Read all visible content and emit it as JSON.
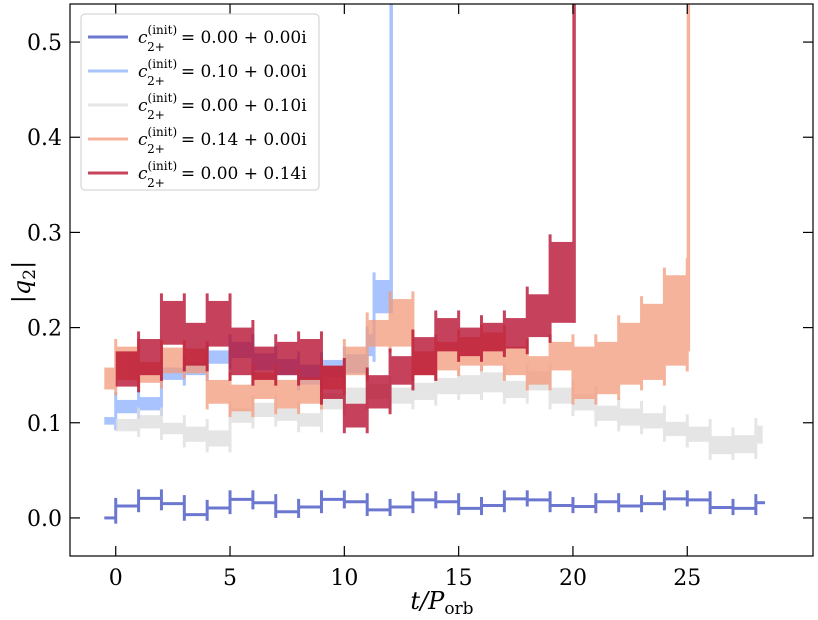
{
  "chart_data": {
    "type": "line",
    "title": "",
    "xlabel": "t/P_orb",
    "xlabel_main": "t/P",
    "xlabel_sub": "orb",
    "ylabel": "|q_2|",
    "ylabel_main": "|q",
    "ylabel_sub": "2",
    "ylabel_close": "|",
    "xlim": [
      -2,
      30.5
    ],
    "ylim": [
      -0.04,
      0.54
    ],
    "x_ticks": [
      0,
      5,
      10,
      15,
      20,
      25
    ],
    "x_tick_labels": [
      "0",
      "5",
      "10",
      "15",
      "20",
      "25"
    ],
    "y_ticks": [
      0.0,
      0.1,
      0.2,
      0.3,
      0.4,
      0.5
    ],
    "y_tick_labels": [
      "0.0",
      "0.1",
      "0.2",
      "0.3",
      "0.4",
      "0.5"
    ],
    "grid": false,
    "legend_position": "top-left",
    "series": [
      {
        "name": "c_{2+}^{(init)} = 0.00 + 0.00i",
        "legend_label": "= 0.00 + 0.00i",
        "color": "#3b4cc0",
        "opacity": 0.75,
        "band": false,
        "end_x": 28.4,
        "levels": [
          [
            -0.5,
            0.0,
            0.0
          ],
          [
            0,
            0.012,
            0.013
          ],
          [
            1,
            0.019,
            0.022
          ],
          [
            2,
            0.014,
            0.016
          ],
          [
            3,
            0.003,
            0.004
          ],
          [
            4,
            0.01,
            0.011
          ],
          [
            5,
            0.018,
            0.021
          ],
          [
            6,
            0.015,
            0.017
          ],
          [
            7,
            0.006,
            0.007
          ],
          [
            8,
            0.011,
            0.012
          ],
          [
            9,
            0.018,
            0.021
          ],
          [
            10,
            0.016,
            0.018
          ],
          [
            11,
            0.008,
            0.009
          ],
          [
            12,
            0.011,
            0.012
          ],
          [
            13,
            0.018,
            0.02
          ],
          [
            14,
            0.016,
            0.018
          ],
          [
            15,
            0.009,
            0.011
          ],
          [
            16,
            0.012,
            0.014
          ],
          [
            17,
            0.019,
            0.021
          ],
          [
            18,
            0.018,
            0.02
          ],
          [
            19,
            0.012,
            0.014
          ],
          [
            20,
            0.011,
            0.013
          ],
          [
            21,
            0.016,
            0.018
          ],
          [
            22,
            0.012,
            0.013
          ],
          [
            23,
            0.014,
            0.016
          ],
          [
            24,
            0.019,
            0.021
          ],
          [
            25,
            0.018,
            0.02
          ],
          [
            26,
            0.01,
            0.012
          ],
          [
            27,
            0.009,
            0.011
          ],
          [
            28,
            0.015,
            0.017
          ]
        ]
      },
      {
        "name": "c_{2+}^{(init)} = 0.10 + 0.00i",
        "legend_label": "= 0.10 + 0.00i",
        "color": "#8db0fe",
        "opacity": 0.75,
        "band": true,
        "end_x": 12.05,
        "end_spike": 0.6,
        "levels": [
          [
            -0.5,
            0.098,
            0.106
          ],
          [
            0,
            0.11,
            0.124
          ],
          [
            1,
            0.113,
            0.127
          ],
          [
            2,
            0.145,
            0.158
          ],
          [
            3,
            0.15,
            0.163
          ],
          [
            4,
            0.162,
            0.176
          ],
          [
            5,
            0.168,
            0.185
          ],
          [
            6,
            0.155,
            0.173
          ],
          [
            7,
            0.15,
            0.167
          ],
          [
            8,
            0.14,
            0.161
          ],
          [
            9,
            0.148,
            0.166
          ],
          [
            10,
            0.152,
            0.172
          ],
          [
            11,
            0.17,
            0.193
          ],
          [
            11.3,
            0.215,
            0.25
          ]
        ]
      },
      {
        "name": "c_{2+}^{(init)} = 0.00 + 0.10i",
        "legend_label": "= 0.00 + 0.10i",
        "color": "#dddddd",
        "opacity": 0.75,
        "band": true,
        "end_x": 28.3,
        "levels": [
          [
            0,
            0.091,
            0.104
          ],
          [
            1,
            0.094,
            0.108
          ],
          [
            2,
            0.088,
            0.1
          ],
          [
            3,
            0.08,
            0.096
          ],
          [
            4,
            0.075,
            0.092
          ],
          [
            5,
            0.1,
            0.115
          ],
          [
            6,
            0.106,
            0.121
          ],
          [
            7,
            0.102,
            0.115
          ],
          [
            8,
            0.096,
            0.11
          ],
          [
            9,
            0.114,
            0.131
          ],
          [
            10,
            0.12,
            0.137
          ],
          [
            11,
            0.125,
            0.141
          ],
          [
            12,
            0.12,
            0.137
          ],
          [
            13,
            0.124,
            0.142
          ],
          [
            14,
            0.13,
            0.147
          ],
          [
            15,
            0.13,
            0.15
          ],
          [
            16,
            0.132,
            0.153
          ],
          [
            17,
            0.126,
            0.144
          ],
          [
            18,
            0.134,
            0.154
          ],
          [
            19,
            0.12,
            0.137
          ],
          [
            20,
            0.113,
            0.13
          ],
          [
            21,
            0.102,
            0.118
          ],
          [
            22,
            0.097,
            0.115
          ],
          [
            23,
            0.094,
            0.11
          ],
          [
            24,
            0.086,
            0.101
          ],
          [
            25,
            0.08,
            0.096
          ],
          [
            26,
            0.067,
            0.086
          ],
          [
            27,
            0.068,
            0.087
          ],
          [
            28,
            0.078,
            0.097
          ]
        ]
      },
      {
        "name": "c_{2+}^{(init)} = 0.14 + 0.00i",
        "legend_label": "= 0.14 + 0.00i",
        "color": "#f49a7b",
        "opacity": 0.75,
        "band": true,
        "end_x": 25.05,
        "end_spike": 0.6,
        "levels": [
          [
            -0.5,
            0.135,
            0.158
          ],
          [
            0,
            0.145,
            0.18
          ],
          [
            1,
            0.142,
            0.164
          ],
          [
            2,
            0.152,
            0.179
          ],
          [
            3,
            0.152,
            0.178
          ],
          [
            4,
            0.12,
            0.145
          ],
          [
            5,
            0.112,
            0.14
          ],
          [
            6,
            0.125,
            0.153
          ],
          [
            7,
            0.115,
            0.145
          ],
          [
            8,
            0.12,
            0.148
          ],
          [
            9,
            0.135,
            0.16
          ],
          [
            10,
            0.15,
            0.18
          ],
          [
            11,
            0.18,
            0.208
          ],
          [
            12,
            0.18,
            0.23
          ],
          [
            13,
            0.15,
            0.175
          ],
          [
            14,
            0.155,
            0.185
          ],
          [
            15,
            0.16,
            0.19
          ],
          [
            16,
            0.16,
            0.195
          ],
          [
            17,
            0.15,
            0.18
          ],
          [
            18,
            0.14,
            0.17
          ],
          [
            19,
            0.155,
            0.185
          ],
          [
            20,
            0.125,
            0.18
          ],
          [
            21,
            0.13,
            0.185
          ],
          [
            22,
            0.14,
            0.205
          ],
          [
            23,
            0.145,
            0.225
          ],
          [
            24,
            0.16,
            0.255
          ],
          [
            25,
            0.175,
            0.265
          ]
        ]
      },
      {
        "name": "c_{2+}^{(init)} = 0.00 + 0.14i",
        "legend_label": "= 0.00 + 0.14i",
        "color": "#b40426",
        "opacity": 0.75,
        "band": true,
        "end_x": 20.05,
        "end_spike": 0.6,
        "levels": [
          [
            0,
            0.138,
            0.175
          ],
          [
            1,
            0.15,
            0.188
          ],
          [
            2,
            0.182,
            0.228
          ],
          [
            3,
            0.16,
            0.205
          ],
          [
            4,
            0.18,
            0.228
          ],
          [
            5,
            0.15,
            0.2
          ],
          [
            6,
            0.145,
            0.18
          ],
          [
            7,
            0.15,
            0.185
          ],
          [
            8,
            0.145,
            0.188
          ],
          [
            9,
            0.125,
            0.16
          ],
          [
            10,
            0.095,
            0.12
          ],
          [
            11,
            0.115,
            0.15
          ],
          [
            12,
            0.14,
            0.17
          ],
          [
            13,
            0.15,
            0.19
          ],
          [
            14,
            0.175,
            0.21
          ],
          [
            15,
            0.17,
            0.2
          ],
          [
            16,
            0.175,
            0.205
          ],
          [
            17,
            0.178,
            0.21
          ],
          [
            18,
            0.19,
            0.235
          ],
          [
            19,
            0.205,
            0.29
          ]
        ]
      }
    ]
  },
  "legend": {
    "symbol_base": "c",
    "symbol_sub": "2+",
    "symbol_sup": "(init)"
  }
}
